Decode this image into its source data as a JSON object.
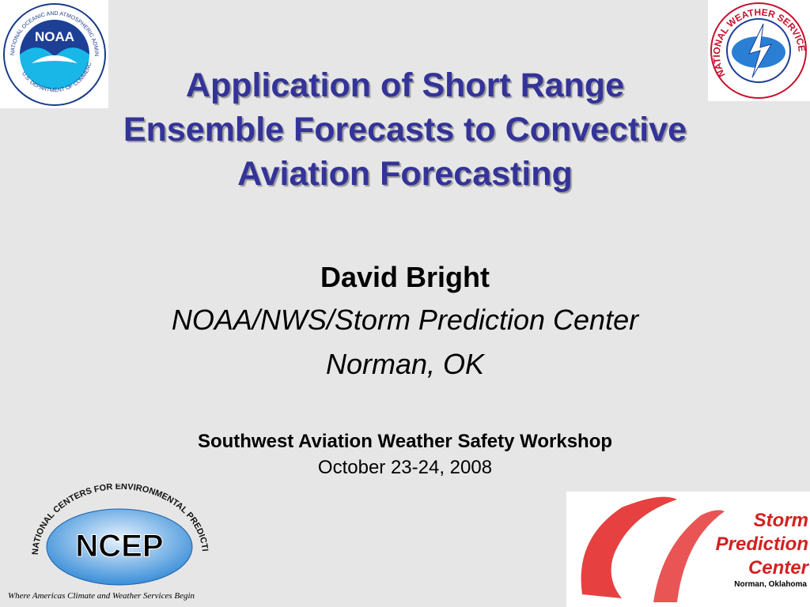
{
  "title_lines": [
    "Application of Short Range",
    "Ensemble Forecasts to Convective",
    "Aviation Forecasting"
  ],
  "author": "David Bright",
  "affiliation": "NOAA/NWS/Storm Prediction Center",
  "location": "Norman, OK",
  "event": "Southwest Aviation Weather Safety Workshop",
  "date": "October 23-24, 2008",
  "logos": {
    "noaa": {
      "name": "NOAA",
      "ring_top": "NATIONAL OCEANIC AND ATMOSPHERIC ADMINISTRATION",
      "ring_bottom": "U.S. DEPARTMENT OF COMMERCE"
    },
    "nws": {
      "ring": "NATIONAL WEATHER SERVICE"
    },
    "ncep": {
      "name": "NCEP",
      "ring": "NATIONAL CENTERS FOR ENVIRONMENTAL PREDICTION",
      "tagline": "Where Americas Climate and Weather Services Begin"
    },
    "spc": {
      "line1": "Storm",
      "line2": "Prediction",
      "line3": "Center",
      "place": "Norman, Oklahoma"
    }
  }
}
